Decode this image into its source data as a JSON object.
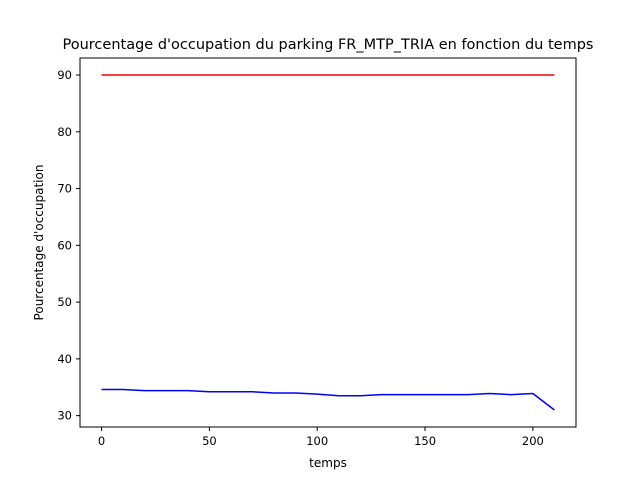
{
  "chart_data": {
    "type": "line",
    "title": "Pourcentage d'occupation du parking FR_MTP_TRIA en fonction du temps",
    "xlabel": "temps",
    "ylabel": "Pourcentage d'occupation",
    "xlim": [
      -10,
      220
    ],
    "ylim": [
      28,
      93
    ],
    "xticks": [
      0,
      50,
      100,
      150,
      200
    ],
    "yticks": [
      30,
      40,
      50,
      60,
      70,
      80,
      90
    ],
    "grid": false,
    "legend": "none",
    "series": [
      {
        "color": "#ff0000",
        "x": [
          0,
          210
        ],
        "y": [
          90,
          90
        ]
      },
      {
        "color": "#0000ff",
        "x": [
          0,
          10,
          20,
          30,
          40,
          50,
          60,
          70,
          80,
          90,
          100,
          110,
          120,
          130,
          140,
          150,
          160,
          170,
          180,
          190,
          200,
          210
        ],
        "y": [
          34.6,
          34.6,
          34.4,
          34.4,
          34.4,
          34.2,
          34.2,
          34.2,
          34.0,
          34.0,
          33.8,
          33.5,
          33.5,
          33.7,
          33.7,
          33.7,
          33.7,
          33.7,
          33.9,
          33.7,
          33.9,
          31.0
        ]
      }
    ]
  }
}
